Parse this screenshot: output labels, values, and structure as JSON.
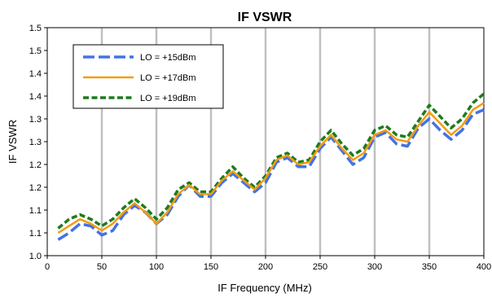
{
  "chart_data": {
    "type": "line",
    "title": "IF VSWR",
    "xlabel": "IF Frequency (MHz)",
    "ylabel": "IF VSWR",
    "xlim": [
      0,
      400
    ],
    "ylim": [
      1.0,
      1.5
    ],
    "xticks": [
      0,
      50,
      100,
      150,
      200,
      250,
      300,
      350,
      400
    ],
    "yticks": [
      1.0,
      1.05,
      1.1,
      1.15,
      1.2,
      1.25,
      1.3,
      1.35,
      1.4,
      1.45,
      1.5
    ],
    "ytick_labels": [
      "1.0",
      "1.1",
      "1.1",
      "1.2",
      "1.2",
      "1.3",
      "1.3",
      "1.4",
      "1.4",
      "1.5",
      "1.5"
    ],
    "grid": "vertical",
    "legend_position": "top-left",
    "x": [
      10,
      20,
      30,
      40,
      50,
      60,
      70,
      80,
      90,
      100,
      110,
      120,
      130,
      140,
      150,
      160,
      170,
      180,
      190,
      200,
      210,
      220,
      230,
      240,
      250,
      260,
      270,
      280,
      290,
      300,
      310,
      320,
      330,
      340,
      350,
      360,
      370,
      380,
      390,
      400
    ],
    "series": [
      {
        "name": "LO = +15dBm",
        "color": "#4472e6",
        "dash": "dashed",
        "values": [
          1.035,
          1.05,
          1.07,
          1.065,
          1.045,
          1.055,
          1.09,
          1.11,
          1.095,
          1.07,
          1.09,
          1.13,
          1.155,
          1.13,
          1.13,
          1.16,
          1.18,
          1.16,
          1.14,
          1.16,
          1.205,
          1.215,
          1.195,
          1.195,
          1.235,
          1.26,
          1.23,
          1.2,
          1.215,
          1.26,
          1.27,
          1.245,
          1.24,
          1.28,
          1.3,
          1.275,
          1.255,
          1.275,
          1.31,
          1.32
        ]
      },
      {
        "name": "LO = +17dBm",
        "color": "#f39c12",
        "dash": "solid",
        "values": [
          1.05,
          1.065,
          1.08,
          1.07,
          1.055,
          1.07,
          1.095,
          1.115,
          1.095,
          1.07,
          1.095,
          1.135,
          1.155,
          1.135,
          1.135,
          1.165,
          1.185,
          1.165,
          1.145,
          1.17,
          1.21,
          1.22,
          1.2,
          1.205,
          1.24,
          1.265,
          1.235,
          1.21,
          1.225,
          1.265,
          1.275,
          1.255,
          1.25,
          1.285,
          1.315,
          1.29,
          1.265,
          1.285,
          1.32,
          1.335
        ]
      },
      {
        "name": "LO = +19dBm",
        "color": "#1e7b1e",
        "dash": "dashed",
        "values": [
          1.06,
          1.08,
          1.09,
          1.08,
          1.065,
          1.08,
          1.105,
          1.125,
          1.105,
          1.08,
          1.105,
          1.145,
          1.16,
          1.14,
          1.14,
          1.17,
          1.195,
          1.17,
          1.15,
          1.175,
          1.215,
          1.225,
          1.205,
          1.21,
          1.25,
          1.275,
          1.245,
          1.22,
          1.235,
          1.275,
          1.285,
          1.265,
          1.26,
          1.295,
          1.33,
          1.305,
          1.28,
          1.3,
          1.335,
          1.355
        ]
      }
    ]
  }
}
